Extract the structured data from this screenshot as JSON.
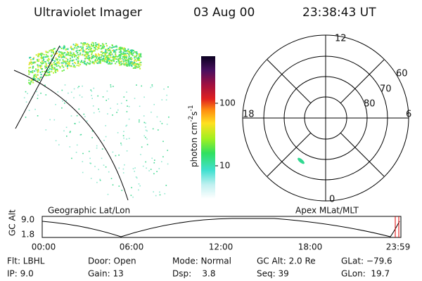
{
  "header": {
    "title": "Ultraviolet Imager",
    "date": "03 Aug 00",
    "time": "23:38:43 UT"
  },
  "colorbar": {
    "label": {
      "base": "photon cm",
      "exp1": "-2",
      "unit2": "s",
      "exp2": "-1"
    },
    "ticks": [
      "100",
      "10"
    ]
  },
  "polar": {
    "mlt_labels": [
      "12",
      "18",
      "6",
      "0"
    ],
    "lat_labels": [
      "60",
      "70",
      "80"
    ]
  },
  "panels": {
    "left_caption": "Geographic Lat/Lon",
    "right_caption": "Apex MLat/MLT"
  },
  "altitude": {
    "axis_label": "GC Alt",
    "y_labels": [
      "9.0",
      "1.8"
    ],
    "x_labels": [
      "00:00",
      "06:00",
      "12:00",
      "18:00",
      "23:59"
    ]
  },
  "info": [
    [
      "Flt: LBHL",
      "IP: 9.0"
    ],
    [
      "Door: Open",
      "Gain: 13"
    ],
    [
      "Mode: Normal",
      "Dsp:    3.8"
    ],
    [
      "GC Alt: 2.0 Re",
      "Seq: 39"
    ],
    [
      "GLat: −79.6",
      "GLon:  19.7"
    ]
  ]
}
